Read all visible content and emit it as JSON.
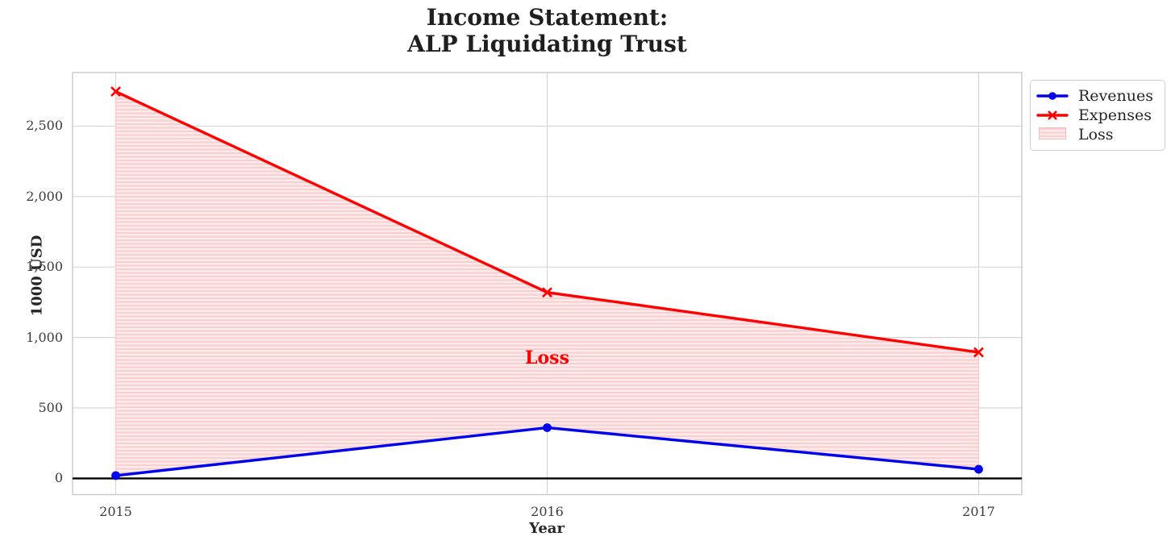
{
  "title": {
    "line1": "Income Statement:",
    "line2": "ALP Liquidating Trust"
  },
  "chart_data": {
    "type": "line",
    "x": [
      2015,
      2016,
      2017
    ],
    "series": [
      {
        "name": "Revenues",
        "values": [
          20,
          360,
          65
        ],
        "color": "#0000ee",
        "marker": "circle"
      },
      {
        "name": "Expenses",
        "values": [
          2745,
          1320,
          895
        ],
        "color": "#ff0000",
        "marker": "x"
      }
    ],
    "loss_area": {
      "label": "Loss",
      "between": [
        "Revenues",
        "Expenses"
      ],
      "fill_color": "#fdeaea",
      "hatch_color": "#f8cfcf",
      "hatch": "horizontal"
    },
    "annotation": {
      "text": "Loss",
      "x": 2016,
      "y": 855,
      "color": "#ff0000"
    },
    "xlabel": "Year",
    "ylabel": "1000 USD",
    "xticks": [
      "2015",
      "2016",
      "2017"
    ],
    "yticks": [
      "0",
      "500",
      "1,000",
      "1,500",
      "2,000",
      "2,500"
    ],
    "ytick_values": [
      0,
      500,
      1000,
      1500,
      2000,
      2500
    ],
    "xlim": [
      2014.9,
      2017.1
    ],
    "ylim": [
      -115,
      2880
    ],
    "grid": true,
    "grid_color": "#d6d6d6",
    "spine_color": "#c9c9c9",
    "zero_line": true,
    "zero_line_color": "#000000",
    "legend": {
      "position": "top-right-outside",
      "items": [
        "Revenues",
        "Expenses",
        "Loss"
      ]
    }
  }
}
